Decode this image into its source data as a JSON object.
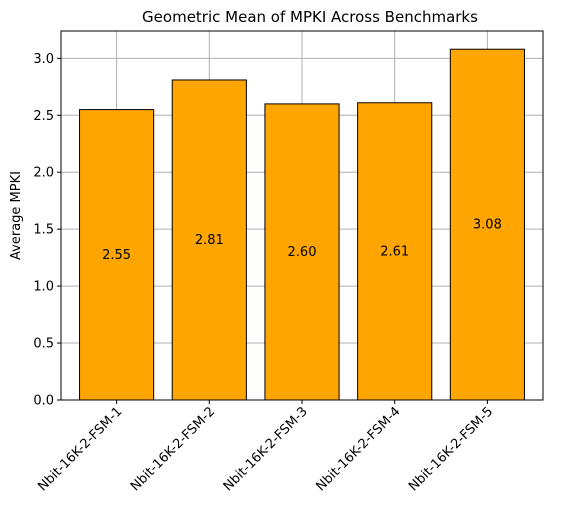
{
  "chart_data": {
    "type": "bar",
    "title": "Geometric Mean of MPKI Across Benchmarks",
    "xlabel": "",
    "ylabel": "Average MPKI",
    "categories": [
      "Nbit-16K-2-FSM-1",
      "Nbit-16K-2-FSM-2",
      "Nbit-16K-2-FSM-3",
      "Nbit-16K-2-FSM-4",
      "Nbit-16K-2-FSM-5"
    ],
    "values": [
      2.55,
      2.81,
      2.6,
      2.61,
      3.08
    ],
    "data_labels": [
      "2.55",
      "2.81",
      "2.60",
      "2.61",
      "3.08"
    ],
    "ylim": [
      0,
      3.24
    ],
    "yticks": [
      0.0,
      0.5,
      1.0,
      1.5,
      2.0,
      2.5,
      3.0
    ],
    "ytick_labels": [
      "0.0",
      "0.5",
      "1.0",
      "1.5",
      "2.0",
      "2.5",
      "3.0"
    ],
    "grid": true,
    "bar_color": "#ffa500",
    "edge_color": "#000000",
    "grid_color": "#b0b0b0"
  }
}
